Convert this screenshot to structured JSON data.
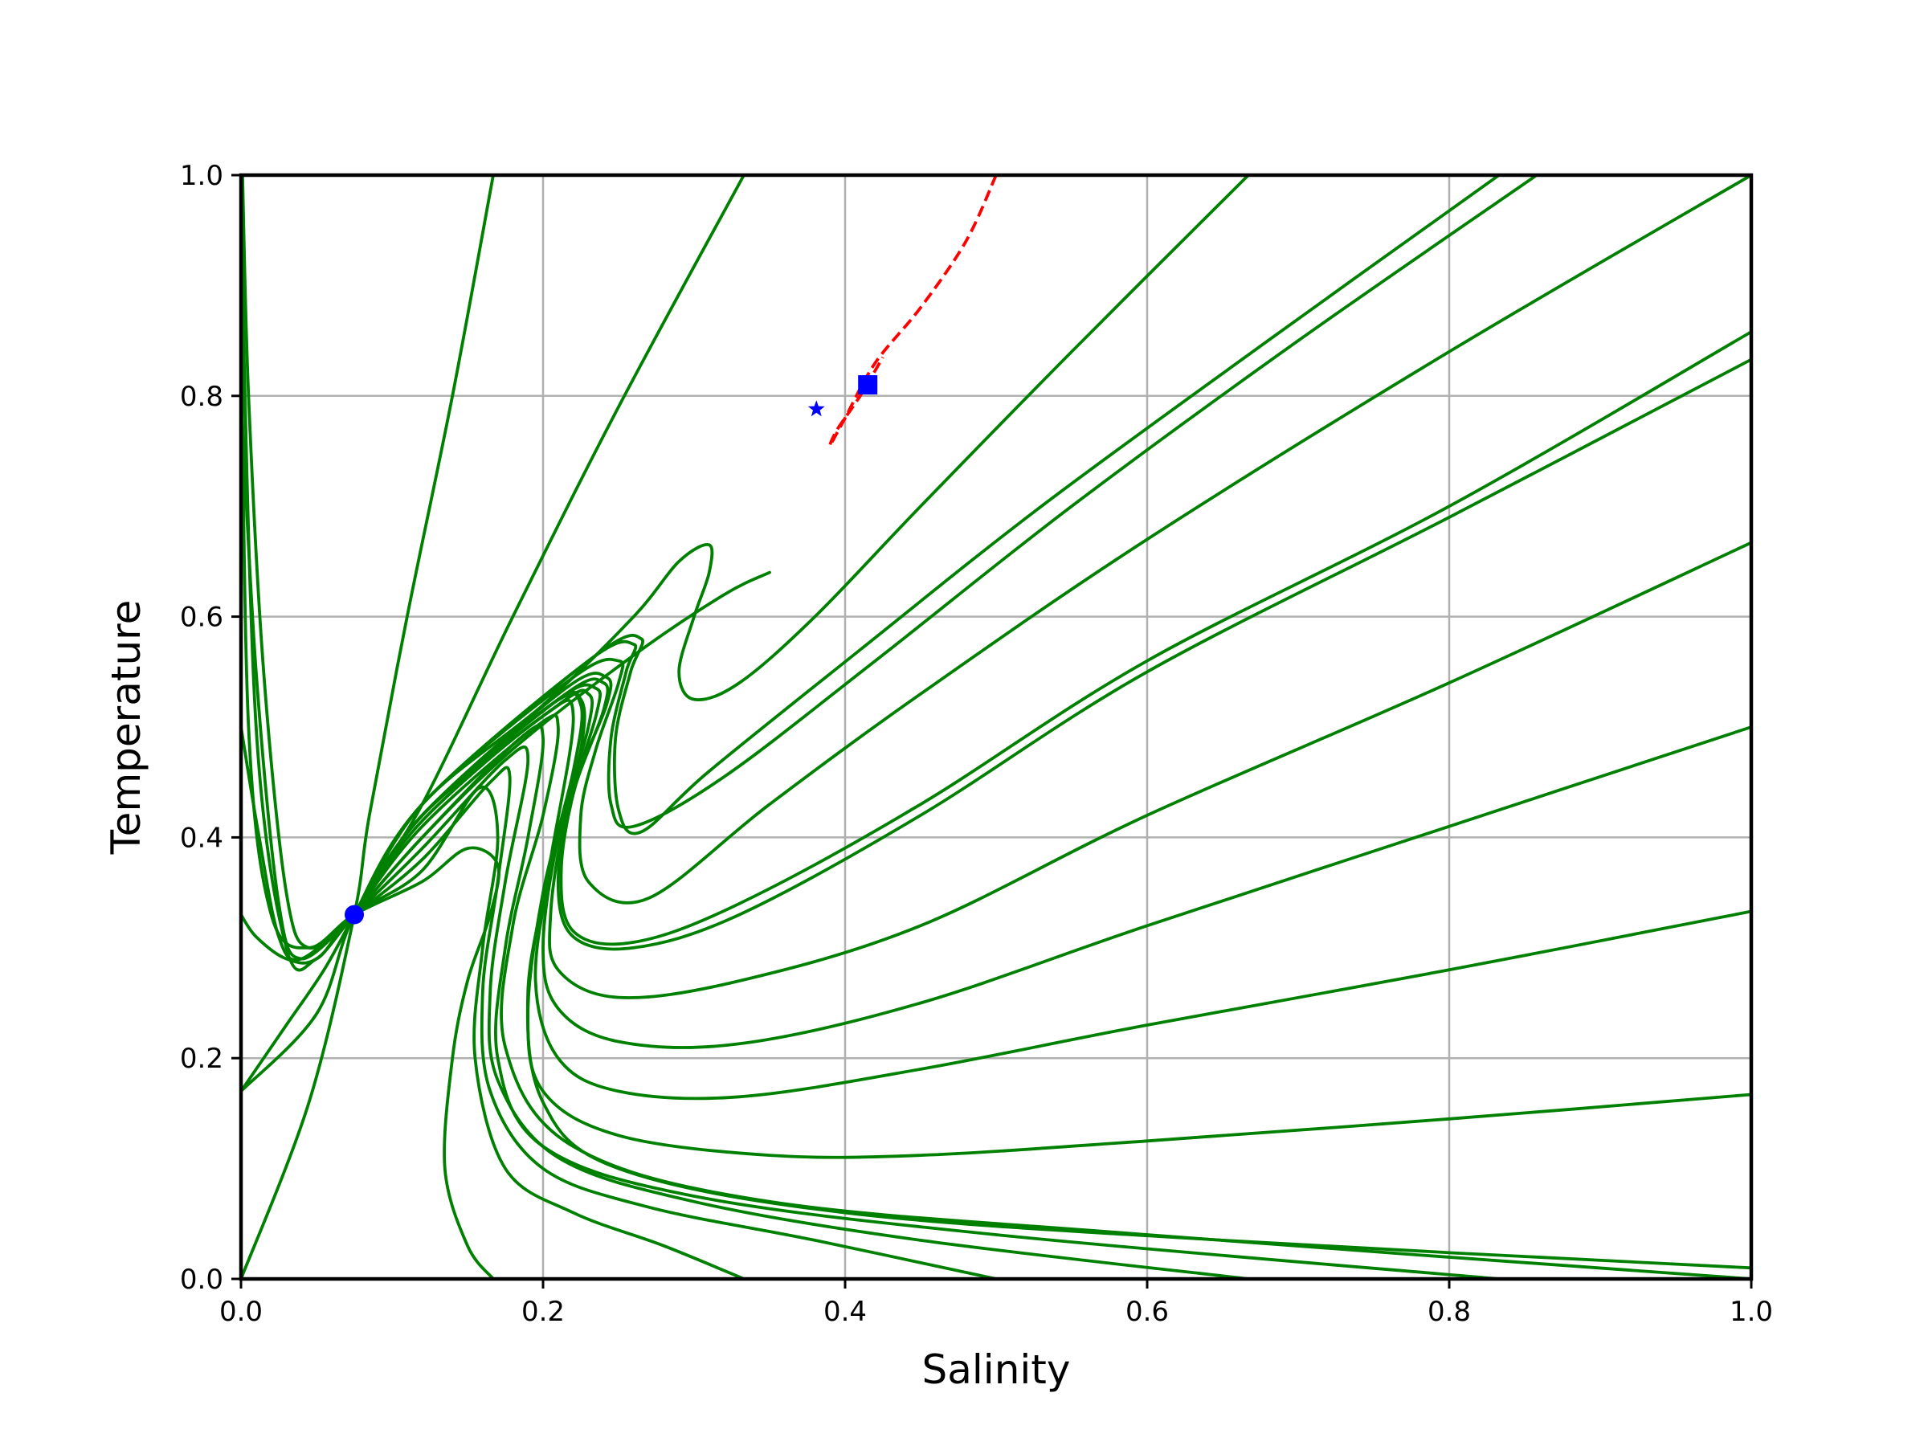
{
  "chart_data": {
    "type": "line",
    "title": "",
    "xlabel": "Salinity",
    "ylabel": "Temperature",
    "xlim": [
      0,
      1
    ],
    "ylim": [
      0,
      1
    ],
    "xticks": [
      "0.0",
      "0.2",
      "0.4",
      "0.6",
      "0.8",
      "1.0"
    ],
    "yticks": [
      "0.0",
      "0.2",
      "0.4",
      "0.6",
      "0.8",
      "1.0"
    ],
    "grid": true,
    "colors": {
      "trajectory": "#008000",
      "ellipse": "#ff0000",
      "markers": "#0000ff"
    },
    "series": [
      {
        "points": [
          [
            0.167,
            0
          ],
          [
            0.15,
            0.03
          ],
          [
            0.135,
            0.1
          ],
          [
            0.14,
            0.2
          ],
          [
            0.15,
            0.27
          ],
          [
            0.165,
            0.33
          ],
          [
            0.17,
            0.375
          ],
          [
            0.15,
            0.39
          ],
          [
            0.12,
            0.36
          ],
          [
            0.075,
            0.33
          ],
          [
            0.045,
            0.3
          ],
          [
            0.02,
            0.33
          ],
          [
            0.005,
            0.5
          ],
          [
            0,
            0.9
          ]
        ]
      },
      {
        "points": [
          [
            0.333,
            0
          ],
          [
            0.28,
            0.03
          ],
          [
            0.22,
            0.06
          ],
          [
            0.175,
            0.1
          ],
          [
            0.155,
            0.2
          ],
          [
            0.16,
            0.3
          ],
          [
            0.17,
            0.4
          ],
          [
            0.158,
            0.445
          ],
          [
            0.12,
            0.37
          ],
          [
            0.075,
            0.33
          ],
          [
            0.05,
            0.29
          ],
          [
            0.03,
            0.3
          ],
          [
            0.01,
            0.5
          ],
          [
            0,
            0.95
          ]
        ]
      },
      {
        "points": [
          [
            0.5,
            0
          ],
          [
            0.38,
            0.035
          ],
          [
            0.27,
            0.065
          ],
          [
            0.2,
            0.1
          ],
          [
            0.165,
            0.17
          ],
          [
            0.16,
            0.26
          ],
          [
            0.17,
            0.36
          ],
          [
            0.178,
            0.455
          ],
          [
            0.165,
            0.45
          ],
          [
            0.12,
            0.38
          ],
          [
            0.075,
            0.33
          ]
        ]
      },
      {
        "points": [
          [
            0.667,
            0
          ],
          [
            0.45,
            0.035
          ],
          [
            0.3,
            0.07
          ],
          [
            0.21,
            0.11
          ],
          [
            0.17,
            0.18
          ],
          [
            0.165,
            0.26
          ],
          [
            0.175,
            0.36
          ],
          [
            0.19,
            0.47
          ],
          [
            0.175,
            0.47
          ],
          [
            0.12,
            0.39
          ],
          [
            0.075,
            0.33
          ]
        ]
      },
      {
        "points": [
          [
            0.833,
            0
          ],
          [
            0.5,
            0.04
          ],
          [
            0.3,
            0.075
          ],
          [
            0.2,
            0.12
          ],
          [
            0.17,
            0.2
          ],
          [
            0.175,
            0.3
          ],
          [
            0.19,
            0.4
          ],
          [
            0.2,
            0.49
          ],
          [
            0.185,
            0.49
          ],
          [
            0.12,
            0.4
          ],
          [
            0.075,
            0.33
          ]
        ]
      },
      {
        "points": [
          [
            1,
            0
          ],
          [
            0.6,
            0.04
          ],
          [
            0.35,
            0.07
          ],
          [
            0.22,
            0.12
          ],
          [
            0.175,
            0.21
          ],
          [
            0.18,
            0.32
          ],
          [
            0.2,
            0.42
          ],
          [
            0.21,
            0.5
          ],
          [
            0.195,
            0.5
          ],
          [
            0.12,
            0.41
          ],
          [
            0.075,
            0.33
          ]
        ]
      },
      {
        "points": [
          [
            1,
            0.01
          ],
          [
            0.65,
            0.035
          ],
          [
            0.4,
            0.06
          ],
          [
            0.25,
            0.1
          ],
          [
            0.2,
            0.16
          ],
          [
            0.19,
            0.26
          ],
          [
            0.205,
            0.38
          ],
          [
            0.22,
            0.51
          ],
          [
            0.2,
            0.51
          ],
          [
            0.12,
            0.415
          ],
          [
            0.075,
            0.33
          ]
        ]
      },
      {
        "points": [
          [
            1,
            0.167
          ],
          [
            0.8,
            0.145
          ],
          [
            0.6,
            0.125
          ],
          [
            0.45,
            0.112
          ],
          [
            0.35,
            0.112
          ],
          [
            0.25,
            0.13
          ],
          [
            0.2,
            0.17
          ],
          [
            0.19,
            0.24
          ],
          [
            0.2,
            0.35
          ],
          [
            0.22,
            0.46
          ],
          [
            0.225,
            0.52
          ],
          [
            0.205,
            0.52
          ],
          [
            0.12,
            0.42
          ],
          [
            0.075,
            0.33
          ]
        ]
      },
      {
        "points": [
          [
            1,
            0.333
          ],
          [
            0.8,
            0.28
          ],
          [
            0.6,
            0.23
          ],
          [
            0.45,
            0.19
          ],
          [
            0.33,
            0.165
          ],
          [
            0.25,
            0.17
          ],
          [
            0.21,
            0.2
          ],
          [
            0.195,
            0.27
          ],
          [
            0.205,
            0.37
          ],
          [
            0.225,
            0.48
          ],
          [
            0.225,
            0.525
          ],
          [
            0.205,
            0.52
          ],
          [
            0.12,
            0.42
          ],
          [
            0.075,
            0.33
          ]
        ]
      },
      {
        "points": [
          [
            1,
            0.5
          ],
          [
            0.8,
            0.41
          ],
          [
            0.6,
            0.32
          ],
          [
            0.45,
            0.25
          ],
          [
            0.33,
            0.213
          ],
          [
            0.25,
            0.215
          ],
          [
            0.21,
            0.245
          ],
          [
            0.2,
            0.3
          ],
          [
            0.21,
            0.4
          ],
          [
            0.23,
            0.5
          ],
          [
            0.23,
            0.53
          ],
          [
            0.21,
            0.52
          ],
          [
            0.12,
            0.42
          ],
          [
            0.075,
            0.33
          ]
        ]
      },
      {
        "points": [
          [
            1,
            0.667
          ],
          [
            0.8,
            0.54
          ],
          [
            0.6,
            0.42
          ],
          [
            0.45,
            0.32
          ],
          [
            0.33,
            0.27
          ],
          [
            0.25,
            0.255
          ],
          [
            0.21,
            0.28
          ],
          [
            0.205,
            0.33
          ],
          [
            0.215,
            0.42
          ],
          [
            0.235,
            0.51
          ],
          [
            0.235,
            0.535
          ],
          [
            0.21,
            0.525
          ],
          [
            0.12,
            0.42
          ],
          [
            0.075,
            0.33
          ]
        ]
      },
      {
        "points": [
          [
            1,
            0.833
          ],
          [
            0.8,
            0.69
          ],
          [
            0.6,
            0.55
          ],
          [
            0.45,
            0.42
          ],
          [
            0.33,
            0.33
          ],
          [
            0.26,
            0.3
          ],
          [
            0.22,
            0.31
          ],
          [
            0.21,
            0.36
          ],
          [
            0.22,
            0.44
          ],
          [
            0.24,
            0.515
          ],
          [
            0.24,
            0.54
          ],
          [
            0.215,
            0.53
          ],
          [
            0.12,
            0.42
          ],
          [
            0.075,
            0.33
          ]
        ]
      },
      {
        "points": [
          [
            1,
            0.858
          ],
          [
            0.8,
            0.7
          ],
          [
            0.6,
            0.56
          ],
          [
            0.45,
            0.43
          ],
          [
            0.33,
            0.34
          ],
          [
            0.26,
            0.305
          ],
          [
            0.22,
            0.315
          ],
          [
            0.212,
            0.37
          ],
          [
            0.222,
            0.45
          ],
          [
            0.242,
            0.52
          ],
          [
            0.242,
            0.545
          ],
          [
            0.215,
            0.535
          ],
          [
            0.12,
            0.42
          ],
          [
            0.075,
            0.33
          ]
        ]
      },
      {
        "points": [
          [
            1,
            1
          ],
          [
            0.8,
            0.84
          ],
          [
            0.6,
            0.67
          ],
          [
            0.45,
            0.53
          ],
          [
            0.35,
            0.43
          ],
          [
            0.27,
            0.345
          ],
          [
            0.23,
            0.36
          ],
          [
            0.225,
            0.42
          ],
          [
            0.235,
            0.48
          ],
          [
            0.25,
            0.54
          ],
          [
            0.25,
            0.56
          ],
          [
            0.22,
            0.545
          ],
          [
            0.12,
            0.43
          ],
          [
            0.075,
            0.33
          ]
        ]
      },
      {
        "points": [
          [
            0.858,
            1
          ],
          [
            0.7,
            0.85
          ],
          [
            0.55,
            0.7
          ],
          [
            0.42,
            0.56
          ],
          [
            0.32,
            0.455
          ],
          [
            0.26,
            0.41
          ],
          [
            0.245,
            0.43
          ],
          [
            0.245,
            0.49
          ],
          [
            0.255,
            0.55
          ],
          [
            0.26,
            0.575
          ],
          [
            0.23,
            0.56
          ],
          [
            0.12,
            0.43
          ],
          [
            0.075,
            0.33
          ]
        ]
      },
      {
        "points": [
          [
            0.833,
            1
          ],
          [
            0.68,
            0.85
          ],
          [
            0.53,
            0.7
          ],
          [
            0.41,
            0.57
          ],
          [
            0.31,
            0.46
          ],
          [
            0.265,
            0.405
          ],
          [
            0.25,
            0.425
          ],
          [
            0.248,
            0.49
          ],
          [
            0.258,
            0.55
          ],
          [
            0.265,
            0.58
          ],
          [
            0.235,
            0.565
          ],
          [
            0.12,
            0.43
          ],
          [
            0.075,
            0.33
          ]
        ]
      },
      {
        "points": [
          [
            0.667,
            1
          ],
          [
            0.55,
            0.84
          ],
          [
            0.45,
            0.7
          ],
          [
            0.38,
            0.6
          ],
          [
            0.33,
            0.54
          ],
          [
            0.3,
            0.525
          ],
          [
            0.29,
            0.55
          ],
          [
            0.3,
            0.6
          ],
          [
            0.31,
            0.64
          ],
          [
            0.31,
            0.665
          ],
          [
            0.29,
            0.65
          ],
          [
            0.26,
            0.6
          ],
          [
            0.2,
            0.52
          ],
          [
            0.12,
            0.43
          ],
          [
            0.075,
            0.33
          ]
        ]
      },
      {
        "points": [
          [
            0.333,
            1
          ],
          [
            0.25,
            0.79
          ],
          [
            0.18,
            0.6
          ],
          [
            0.12,
            0.43
          ],
          [
            0.075,
            0.33
          ],
          [
            0.05,
            0.24
          ],
          [
            0,
            0.17
          ]
        ]
      },
      {
        "points": [
          [
            0.167,
            1
          ],
          [
            0.14,
            0.8
          ],
          [
            0.11,
            0.6
          ],
          [
            0.085,
            0.42
          ],
          [
            0.075,
            0.33
          ],
          [
            0.045,
            0.16
          ],
          [
            0,
            0
          ]
        ]
      },
      {
        "points": [
          [
            0,
            0.33
          ],
          [
            0.01,
            0.31
          ],
          [
            0.03,
            0.29
          ],
          [
            0.05,
            0.29
          ],
          [
            0.075,
            0.33
          ],
          [
            0.12,
            0.4
          ],
          [
            0.18,
            0.48
          ],
          [
            0.26,
            0.565
          ],
          [
            0.32,
            0.62
          ],
          [
            0.35,
            0.64
          ]
        ]
      },
      {
        "points": [
          [
            0.001,
            1
          ],
          [
            0.005,
            0.8
          ],
          [
            0.015,
            0.55
          ],
          [
            0.03,
            0.35
          ],
          [
            0.045,
            0.3
          ],
          [
            0.075,
            0.33
          ]
        ]
      },
      {
        "points": [
          [
            0,
            0.8
          ],
          [
            0.01,
            0.55
          ],
          [
            0.025,
            0.34
          ],
          [
            0.04,
            0.29
          ],
          [
            0.075,
            0.33
          ]
        ]
      },
      {
        "points": [
          [
            0,
            0.5
          ],
          [
            0.012,
            0.4
          ],
          [
            0.025,
            0.31
          ],
          [
            0.04,
            0.29
          ],
          [
            0.075,
            0.33
          ]
        ]
      },
      {
        "points": [
          [
            0,
            0.17
          ],
          [
            0.03,
            0.23
          ],
          [
            0.055,
            0.28
          ],
          [
            0.075,
            0.33
          ]
        ]
      }
    ],
    "ellipse": {
      "points": [
        [
          0.5,
          1
        ],
        [
          0.48,
          0.94
        ],
        [
          0.45,
          0.88
        ],
        [
          0.42,
          0.83
        ],
        [
          0.4,
          0.78
        ],
        [
          0.39,
          0.755
        ],
        [
          0.395,
          0.77
        ],
        [
          0.41,
          0.8
        ],
        [
          0.425,
          0.835
        ]
      ]
    },
    "markers": [
      {
        "shape": "circle",
        "x": 0.075,
        "y": 0.33
      },
      {
        "shape": "square",
        "x": 0.415,
        "y": 0.81
      },
      {
        "shape": "star",
        "x": 0.381,
        "y": 0.788
      }
    ]
  }
}
